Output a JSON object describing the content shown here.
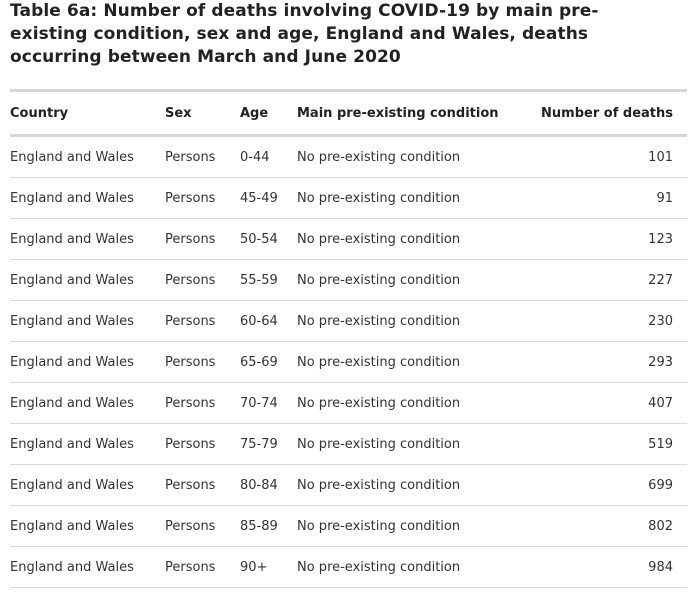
{
  "title": "Table 6a: Number of deaths involving COVID-19 by main pre-existing condition, sex and age, England and Wales, deaths occurring between March and June 2020",
  "table": {
    "headers": {
      "country": "Country",
      "sex": "Sex",
      "age": "Age",
      "condition": "Main pre-existing condition",
      "deaths": "Number of deaths"
    },
    "rows": [
      {
        "country": "England and Wales",
        "sex": "Persons",
        "age": "0-44",
        "condition": "No pre-existing condition",
        "deaths": "101"
      },
      {
        "country": "England and Wales",
        "sex": "Persons",
        "age": "45-49",
        "condition": "No pre-existing condition",
        "deaths": "91"
      },
      {
        "country": "England and Wales",
        "sex": "Persons",
        "age": "50-54",
        "condition": "No pre-existing condition",
        "deaths": "123"
      },
      {
        "country": "England and Wales",
        "sex": "Persons",
        "age": "55-59",
        "condition": "No pre-existing condition",
        "deaths": "227"
      },
      {
        "country": "England and Wales",
        "sex": "Persons",
        "age": "60-64",
        "condition": "No pre-existing condition",
        "deaths": "230"
      },
      {
        "country": "England and Wales",
        "sex": "Persons",
        "age": "65-69",
        "condition": "No pre-existing condition",
        "deaths": "293"
      },
      {
        "country": "England and Wales",
        "sex": "Persons",
        "age": "70-74",
        "condition": "No pre-existing condition",
        "deaths": "407"
      },
      {
        "country": "England and Wales",
        "sex": "Persons",
        "age": "75-79",
        "condition": "No pre-existing condition",
        "deaths": "519"
      },
      {
        "country": "England and Wales",
        "sex": "Persons",
        "age": "80-84",
        "condition": "No pre-existing condition",
        "deaths": "699"
      },
      {
        "country": "England and Wales",
        "sex": "Persons",
        "age": "85-89",
        "condition": "No pre-existing condition",
        "deaths": "802"
      },
      {
        "country": "England and Wales",
        "sex": "Persons",
        "age": "90+",
        "condition": "No pre-existing condition",
        "deaths": "984"
      }
    ]
  }
}
